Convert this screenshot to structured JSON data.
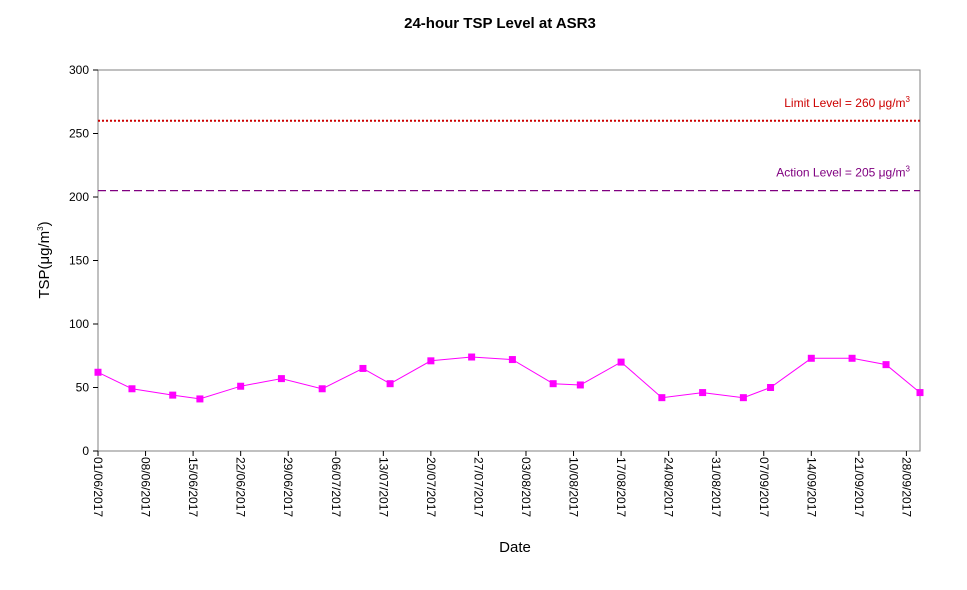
{
  "chart_data": {
    "type": "line",
    "title": "24-hour TSP Level at ASR3",
    "xlabel": "Date",
    "ylabel": {
      "prefix": "TSP(",
      "unit": "μg/m",
      "exponent": "3",
      "suffix": ")"
    },
    "ylim": [
      0,
      300
    ],
    "yticks": [
      0,
      50,
      100,
      150,
      200,
      250,
      300
    ],
    "xlim": [
      "01/06/2017",
      "30/09/2017"
    ],
    "xticks": [
      "01/06/2017",
      "08/06/2017",
      "15/06/2017",
      "22/06/2017",
      "29/06/2017",
      "06/07/2017",
      "13/07/2017",
      "20/07/2017",
      "27/07/2017",
      "03/08/2017",
      "10/08/2017",
      "17/08/2017",
      "24/08/2017",
      "31/08/2017",
      "07/09/2017",
      "14/09/2017",
      "21/09/2017",
      "28/09/2017"
    ],
    "grid": false,
    "series": [
      {
        "color": "#ff00ff",
        "marker": "square",
        "points": [
          {
            "x": "01/06/2017",
            "y": 62
          },
          {
            "x": "06/06/2017",
            "y": 49
          },
          {
            "x": "12/06/2017",
            "y": 44
          },
          {
            "x": "16/06/2017",
            "y": 41
          },
          {
            "x": "22/06/2017",
            "y": 51
          },
          {
            "x": "28/06/2017",
            "y": 57
          },
          {
            "x": "04/07/2017",
            "y": 49
          },
          {
            "x": "10/07/2017",
            "y": 65
          },
          {
            "x": "14/07/2017",
            "y": 53
          },
          {
            "x": "20/07/2017",
            "y": 71
          },
          {
            "x": "26/07/2017",
            "y": 74
          },
          {
            "x": "01/08/2017",
            "y": 72
          },
          {
            "x": "07/08/2017",
            "y": 53
          },
          {
            "x": "11/08/2017",
            "y": 52
          },
          {
            "x": "17/08/2017",
            "y": 70
          },
          {
            "x": "23/08/2017",
            "y": 42
          },
          {
            "x": "29/08/2017",
            "y": 46
          },
          {
            "x": "04/09/2017",
            "y": 42
          },
          {
            "x": "08/09/2017",
            "y": 50
          },
          {
            "x": "14/09/2017",
            "y": 73
          },
          {
            "x": "20/09/2017",
            "y": 73
          },
          {
            "x": "25/09/2017",
            "y": 68
          },
          {
            "x": "30/09/2017",
            "y": 46
          }
        ]
      }
    ],
    "reference_lines": [
      {
        "label": "Limit Level  = 260 μg/m",
        "label_exponent": "3",
        "value": 260,
        "style": "dotted",
        "color": "#cc0000"
      },
      {
        "label": "Action Level  = 205 μg/m",
        "label_exponent": "3",
        "value": 205,
        "style": "dashed",
        "color": "#800080"
      }
    ]
  }
}
